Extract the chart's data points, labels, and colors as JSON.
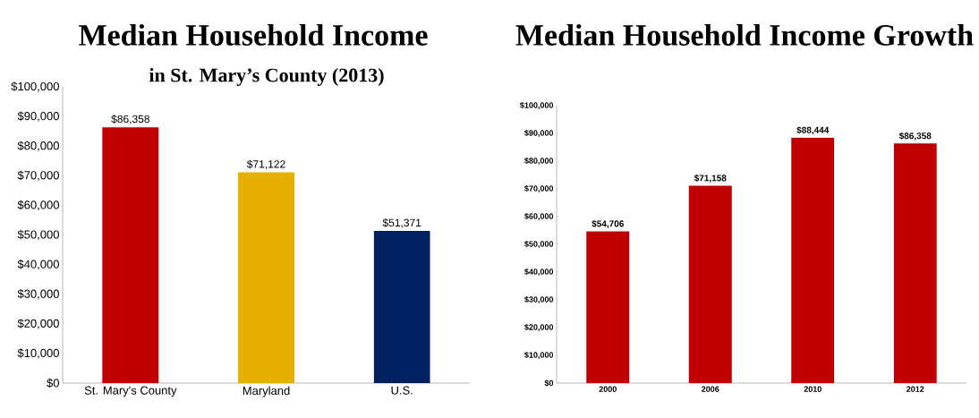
{
  "chart_data": [
    {
      "type": "bar",
      "title": "Median Household Income",
      "subtitle": "in St. Mary’s County (2013)",
      "categories": [
        "St. Mary's County",
        "Maryland",
        "U.S."
      ],
      "values": [
        86358,
        71122,
        51371
      ],
      "colors": [
        "#c00000",
        "#e6b000",
        "#002060"
      ],
      "value_labels": [
        "$86,358",
        "$71,122",
        "$51,371"
      ],
      "ylim": [
        0,
        100000
      ],
      "yticks": [
        {
          "value": 0,
          "label": "$0"
        },
        {
          "value": 10000,
          "label": "$10,000"
        },
        {
          "value": 20000,
          "label": "$20,000"
        },
        {
          "value": 30000,
          "label": "$30,000"
        },
        {
          "value": 40000,
          "label": "$40,000"
        },
        {
          "value": 50000,
          "label": "$50,000"
        },
        {
          "value": 60000,
          "label": "$60,000"
        },
        {
          "value": 70000,
          "label": "$70,000"
        },
        {
          "value": 80000,
          "label": "$80,000"
        },
        {
          "value": 90000,
          "label": "$90,000"
        },
        {
          "value": 100000,
          "label": "$100,000"
        }
      ]
    },
    {
      "type": "bar",
      "title": "Median Household Income Growth",
      "categories": [
        "2000",
        "2006",
        "2010",
        "2012"
      ],
      "values": [
        54706,
        71158,
        88444,
        86358
      ],
      "color": "#c00000",
      "value_labels": [
        "$54,706",
        "$71,158",
        "$88,444",
        "$86,358"
      ],
      "ylim": [
        0,
        100000
      ],
      "yticks": [
        {
          "value": 0,
          "label": "$0"
        },
        {
          "value": 10000,
          "label": "$10,000"
        },
        {
          "value": 20000,
          "label": "$20,000"
        },
        {
          "value": 30000,
          "label": "$30,000"
        },
        {
          "value": 40000,
          "label": "$40,000"
        },
        {
          "value": 50000,
          "label": "$50,000"
        },
        {
          "value": 60000,
          "label": "$60,000"
        },
        {
          "value": 70000,
          "label": "$70,000"
        },
        {
          "value": 80000,
          "label": "$80,000"
        },
        {
          "value": 90000,
          "label": "$90,000"
        },
        {
          "value": 100000,
          "label": "$100,000"
        }
      ]
    }
  ]
}
